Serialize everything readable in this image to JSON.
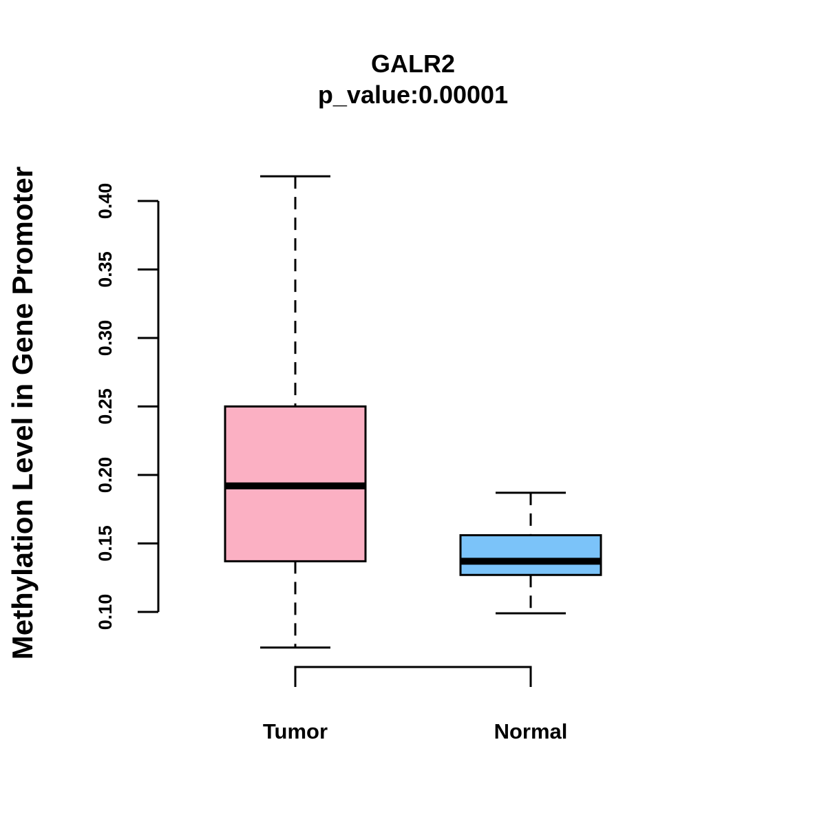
{
  "chart_data": {
    "type": "boxplot",
    "title": "GALR2",
    "subtitle": "p_value:0.00001",
    "xlabel": "",
    "ylabel": "Methylation Level in Gene Promoter",
    "ylim": [
      0.1,
      0.4
    ],
    "yticks": [
      "0.10",
      "0.15",
      "0.20",
      "0.25",
      "0.30",
      "0.35",
      "0.40"
    ],
    "grid": false,
    "legend": "none",
    "categories": [
      "Tumor",
      "Normal"
    ],
    "series": [
      {
        "category": "Tumor",
        "whisker_low": 0.074,
        "q1": 0.137,
        "median": 0.192,
        "q3": 0.25,
        "whisker_high": 0.418,
        "color": "#FBB0C3"
      },
      {
        "category": "Normal",
        "whisker_low": 0.099,
        "q1": 0.127,
        "median": 0.137,
        "q3": 0.156,
        "whisker_high": 0.187,
        "color": "#7BC3F9"
      }
    ],
    "comparison_bracket": [
      "Tumor",
      "Normal"
    ]
  }
}
